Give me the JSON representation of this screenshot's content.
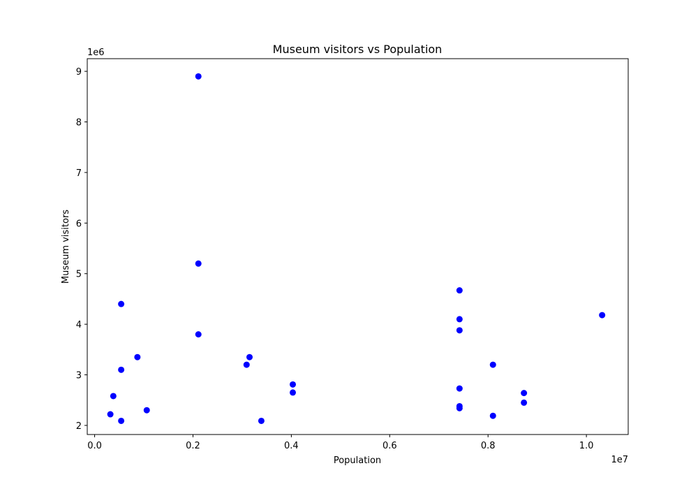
{
  "chart_data": {
    "type": "scatter",
    "title": "Museum visitors vs Population",
    "xlabel": "Population",
    "ylabel": "Museum visitors",
    "x_offset_label": "1e7",
    "y_offset_label": "1e6",
    "xlim": [
      -150000,
      10850000
    ],
    "ylim": [
      1820000,
      9250000
    ],
    "x_ticks": [
      0,
      2000000,
      4000000,
      6000000,
      8000000,
      10000000
    ],
    "x_tick_labels": [
      "0.0",
      "0.2",
      "0.4",
      "0.6",
      "0.8",
      "1.0"
    ],
    "y_ticks": [
      2000000,
      3000000,
      4000000,
      5000000,
      6000000,
      7000000,
      8000000,
      9000000
    ],
    "y_tick_labels": [
      "2",
      "3",
      "4",
      "5",
      "6",
      "7",
      "8",
      "9"
    ],
    "grid": false,
    "marker_color": "#0000ff",
    "points": [
      {
        "x": 2110000,
        "y": 8900000
      },
      {
        "x": 2110000,
        "y": 5200000
      },
      {
        "x": 2110000,
        "y": 3800000
      },
      {
        "x": 540000,
        "y": 4400000
      },
      {
        "x": 540000,
        "y": 3100000
      },
      {
        "x": 540000,
        "y": 2090000
      },
      {
        "x": 870000,
        "y": 3350000
      },
      {
        "x": 380000,
        "y": 2580000
      },
      {
        "x": 320000,
        "y": 2220000
      },
      {
        "x": 1060000,
        "y": 2300000
      },
      {
        "x": 3150000,
        "y": 3350000
      },
      {
        "x": 3090000,
        "y": 3200000
      },
      {
        "x": 3390000,
        "y": 2090000
      },
      {
        "x": 4030000,
        "y": 2810000
      },
      {
        "x": 4030000,
        "y": 2650000
      },
      {
        "x": 7420000,
        "y": 4670000
      },
      {
        "x": 7420000,
        "y": 4100000
      },
      {
        "x": 7420000,
        "y": 3880000
      },
      {
        "x": 7420000,
        "y": 2730000
      },
      {
        "x": 7420000,
        "y": 2380000
      },
      {
        "x": 7420000,
        "y": 2340000
      },
      {
        "x": 8100000,
        "y": 3200000
      },
      {
        "x": 8100000,
        "y": 2190000
      },
      {
        "x": 8730000,
        "y": 2640000
      },
      {
        "x": 8730000,
        "y": 2450000
      },
      {
        "x": 10320000,
        "y": 4180000
      }
    ]
  }
}
